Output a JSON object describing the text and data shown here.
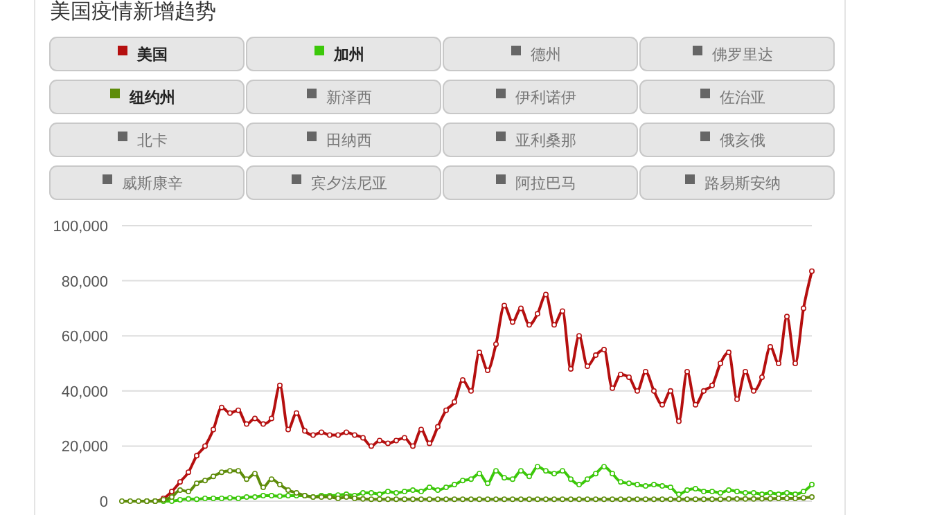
{
  "chart_data": {
    "type": "line",
    "title": "美国疫情新增趋势",
    "categories": [
      null,
      null,
      null,
      null,
      null,
      null,
      null,
      null,
      null,
      null,
      null,
      null,
      null,
      null,
      null,
      null,
      null,
      null,
      null,
      null,
      null,
      null,
      null,
      null,
      null,
      null,
      null,
      null,
      null,
      null,
      null,
      null,
      null,
      null,
      null,
      null,
      null,
      null,
      null,
      null,
      null,
      null,
      null,
      null,
      null,
      null,
      null,
      null,
      null,
      null,
      null,
      null,
      null,
      null,
      null,
      null,
      null,
      null,
      null,
      null,
      null,
      null,
      null,
      null,
      null,
      null,
      null,
      null,
      null,
      null,
      null,
      null,
      null,
      null,
      null,
      null,
      null,
      null,
      null,
      null,
      null,
      null,
      null,
      null
    ],
    "series": [
      {
        "name": "美国",
        "color": "#b50f0f",
        "values": [
          null,
          null,
          null,
          0,
          0,
          1000,
          3500,
          7000,
          10500,
          16500,
          20000,
          26000,
          34000,
          32000,
          33000,
          28000,
          30000,
          28000,
          30000,
          42000,
          26000,
          32000,
          25500,
          24000,
          25000,
          24000,
          24000,
          25000,
          24000,
          23000,
          20000,
          22000,
          21000,
          22000,
          23000,
          20000,
          26000,
          21000,
          27000,
          33000,
          36000,
          44000,
          40000,
          54000,
          47500,
          57000,
          71000,
          65000,
          70000,
          64000,
          68000,
          75000,
          64000,
          69000,
          48000,
          60000,
          49000,
          53000,
          55000,
          41000,
          46000,
          45000,
          40000,
          47000,
          40000,
          35000,
          40000,
          29000,
          47000,
          35000,
          40000,
          42000,
          50000,
          54000,
          37000,
          47000,
          40000,
          45000,
          56000,
          50000,
          67000,
          50000,
          70000,
          83500
        ]
      },
      {
        "name": "加州",
        "color": "#3cc80a",
        "values": [
          null,
          null,
          null,
          0,
          0,
          0,
          0,
          500,
          800,
          700,
          1000,
          1000,
          1000,
          1200,
          1000,
          1500,
          1500,
          2000,
          2000,
          1800,
          2000,
          2000,
          2000,
          1500,
          2000,
          2000,
          2200,
          2500,
          2000,
          3000,
          3000,
          2500,
          3500,
          3000,
          3500,
          4000,
          3500,
          5000,
          4000,
          5000,
          6000,
          7500,
          8000,
          10000,
          6500,
          11000,
          8500,
          8000,
          11000,
          9000,
          12500,
          11000,
          10000,
          11000,
          8000,
          6000,
          8000,
          10000,
          12500,
          10000,
          7000,
          6500,
          6000,
          5500,
          6000,
          5500,
          5000,
          2500,
          4000,
          4500,
          3500,
          3500,
          3000,
          4000,
          3500,
          3000,
          3000,
          2500,
          3000,
          2500,
          3000,
          2500,
          3500,
          6000
        ]
      },
      {
        "name": "德州",
        "color": "#666666",
        "values": [
          null,
          null,
          null,
          null,
          null,
          null,
          null,
          null,
          null,
          null,
          null,
          null,
          null,
          null,
          null,
          null,
          null,
          null,
          null,
          null,
          null,
          null,
          null,
          null,
          null,
          null,
          null,
          null,
          null,
          null,
          null,
          null,
          null,
          null,
          null,
          null,
          null,
          null,
          null,
          null,
          null,
          null,
          null,
          null,
          null,
          null,
          null,
          null,
          null,
          null,
          null,
          null,
          null,
          null,
          null,
          null,
          null,
          null,
          null,
          null,
          null,
          null,
          null,
          null,
          null,
          null,
          null,
          null,
          null,
          null,
          null,
          null,
          null,
          null,
          null,
          null,
          null,
          null,
          null,
          null,
          null,
          null,
          null,
          null
        ]
      },
      {
        "name": "佛罗里达",
        "color": "#666666",
        "values": [
          null,
          null,
          null,
          null,
          null,
          null,
          null,
          null,
          null,
          null,
          null,
          null,
          null,
          null,
          null,
          null,
          null,
          null,
          null,
          null,
          null,
          null,
          null,
          null,
          null,
          null,
          null,
          null,
          null,
          null,
          null,
          null,
          null,
          null,
          null,
          null,
          null,
          null,
          null,
          null,
          null,
          null,
          null,
          null,
          null,
          null,
          null,
          null,
          null,
          null,
          null,
          null,
          null,
          null,
          null,
          null,
          null,
          null,
          null,
          null,
          null,
          null,
          null,
          null,
          null,
          null,
          null,
          null,
          null,
          null,
          null,
          null,
          null,
          null,
          null,
          null,
          null,
          null,
          null,
          null,
          null,
          null,
          null,
          null
        ]
      },
      {
        "name": "纽约州",
        "color": "#5e8c0a",
        "values": [
          0,
          0,
          0,
          0,
          0,
          500,
          1500,
          4000,
          3500,
          6500,
          7500,
          9000,
          10500,
          11000,
          11000,
          8000,
          10000,
          5000,
          8000,
          6000,
          4000,
          3000,
          2000,
          1500,
          1500,
          1500,
          1000,
          1500,
          1000,
          800,
          700,
          700,
          700,
          700,
          700,
          700,
          700,
          700,
          700,
          700,
          700,
          700,
          700,
          700,
          700,
          700,
          700,
          700,
          700,
          700,
          700,
          700,
          700,
          700,
          700,
          700,
          700,
          700,
          700,
          700,
          700,
          700,
          700,
          700,
          700,
          700,
          700,
          700,
          700,
          700,
          700,
          700,
          700,
          800,
          800,
          800,
          800,
          900,
          900,
          1000,
          1000,
          1000,
          1200,
          1500
        ]
      },
      {
        "name": "新泽西",
        "color": "#666666",
        "values": [
          null,
          null,
          null,
          null,
          null,
          null,
          null,
          null,
          null,
          null,
          null,
          null,
          null,
          null,
          null,
          null,
          null,
          null,
          null,
          null,
          null,
          null,
          null,
          null,
          null,
          null,
          null,
          null,
          null,
          null,
          null,
          null,
          null,
          null,
          null,
          null,
          null,
          null,
          null,
          null,
          null,
          null,
          null,
          null,
          null,
          null,
          null,
          null,
          null,
          null,
          null,
          null,
          null,
          null,
          null,
          null,
          null,
          null,
          null,
          null,
          null,
          null,
          null,
          null,
          null,
          null,
          null,
          null,
          null,
          null,
          null,
          null,
          null,
          null,
          null,
          null,
          null,
          null,
          null,
          null,
          null,
          null,
          null,
          null
        ]
      },
      {
        "name": "伊利诺伊",
        "color": "#666666",
        "values": [
          null,
          null,
          null,
          null,
          null,
          null,
          null,
          null,
          null,
          null,
          null,
          null,
          null,
          null,
          null,
          null,
          null,
          null,
          null,
          null,
          null,
          null,
          null,
          null,
          null,
          null,
          null,
          null,
          null,
          null,
          null,
          null,
          null,
          null,
          null,
          null,
          null,
          null,
          null,
          null,
          null,
          null,
          null,
          null,
          null,
          null,
          null,
          null,
          null,
          null,
          null,
          null,
          null,
          null,
          null,
          null,
          null,
          null,
          null,
          null,
          null,
          null,
          null,
          null,
          null,
          null,
          null,
          null,
          null,
          null,
          null,
          null,
          null,
          null,
          null,
          null,
          null,
          null,
          null,
          null,
          null,
          null,
          null,
          null
        ]
      },
      {
        "name": "佐治亚",
        "color": "#666666",
        "values": [
          null,
          null,
          null,
          null,
          null,
          null,
          null,
          null,
          null,
          null,
          null,
          null,
          null,
          null,
          null,
          null,
          null,
          null,
          null,
          null,
          null,
          null,
          null,
          null,
          null,
          null,
          null,
          null,
          null,
          null,
          null,
          null,
          null,
          null,
          null,
          null,
          null,
          null,
          null,
          null,
          null,
          null,
          null,
          null,
          null,
          null,
          null,
          null,
          null,
          null,
          null,
          null,
          null,
          null,
          null,
          null,
          null,
          null,
          null,
          null,
          null,
          null,
          null,
          null,
          null,
          null,
          null,
          null,
          null,
          null,
          null,
          null,
          null,
          null,
          null,
          null,
          null,
          null,
          null,
          null,
          null,
          null,
          null,
          null
        ]
      },
      {
        "name": "北卡",
        "color": "#666666",
        "values": [
          null,
          null,
          null,
          null,
          null,
          null,
          null,
          null,
          null,
          null,
          null,
          null,
          null,
          null,
          null,
          null,
          null,
          null,
          null,
          null,
          null,
          null,
          null,
          null,
          null,
          null,
          null,
          null,
          null,
          null,
          null,
          null,
          null,
          null,
          null,
          null,
          null,
          null,
          null,
          null,
          null,
          null,
          null,
          null,
          null,
          null,
          null,
          null,
          null,
          null,
          null,
          null,
          null,
          null,
          null,
          null,
          null,
          null,
          null,
          null,
          null,
          null,
          null,
          null,
          null,
          null,
          null,
          null,
          null,
          null,
          null,
          null,
          null,
          null,
          null,
          null,
          null,
          null,
          null,
          null,
          null,
          null,
          null,
          null
        ]
      },
      {
        "name": "田纳西",
        "color": "#666666",
        "values": [
          null,
          null,
          null,
          null,
          null,
          null,
          null,
          null,
          null,
          null,
          null,
          null,
          null,
          null,
          null,
          null,
          null,
          null,
          null,
          null,
          null,
          null,
          null,
          null,
          null,
          null,
          null,
          null,
          null,
          null,
          null,
          null,
          null,
          null,
          null,
          null,
          null,
          null,
          null,
          null,
          null,
          null,
          null,
          null,
          null,
          null,
          null,
          null,
          null,
          null,
          null,
          null,
          null,
          null,
          null,
          null,
          null,
          null,
          null,
          null,
          null,
          null,
          null,
          null,
          null,
          null,
          null,
          null,
          null,
          null,
          null,
          null,
          null,
          null,
          null,
          null,
          null,
          null,
          null,
          null,
          null,
          null,
          null,
          null
        ]
      },
      {
        "name": "亚利桑那",
        "color": "#666666",
        "values": [
          null,
          null,
          null,
          null,
          null,
          null,
          null,
          null,
          null,
          null,
          null,
          null,
          null,
          null,
          null,
          null,
          null,
          null,
          null,
          null,
          null,
          null,
          null,
          null,
          null,
          null,
          null,
          null,
          null,
          null,
          null,
          null,
          null,
          null,
          null,
          null,
          null,
          null,
          null,
          null,
          null,
          null,
          null,
          null,
          null,
          null,
          null,
          null,
          null,
          null,
          null,
          null,
          null,
          null,
          null,
          null,
          null,
          null,
          null,
          null,
          null,
          null,
          null,
          null,
          null,
          null,
          null,
          null,
          null,
          null,
          null,
          null,
          null,
          null,
          null,
          null,
          null,
          null,
          null,
          null,
          null,
          null,
          null,
          null
        ]
      },
      {
        "name": "俄亥俄",
        "color": "#666666",
        "values": [
          null,
          null,
          null,
          null,
          null,
          null,
          null,
          null,
          null,
          null,
          null,
          null,
          null,
          null,
          null,
          null,
          null,
          null,
          null,
          null,
          null,
          null,
          null,
          null,
          null,
          null,
          null,
          null,
          null,
          null,
          null,
          null,
          null,
          null,
          null,
          null,
          null,
          null,
          null,
          null,
          null,
          null,
          null,
          null,
          null,
          null,
          null,
          null,
          null,
          null,
          null,
          null,
          null,
          null,
          null,
          null,
          null,
          null,
          null,
          null,
          null,
          null,
          null,
          null,
          null,
          null,
          null,
          null,
          null,
          null,
          null,
          null,
          null,
          null,
          null,
          null,
          null,
          null,
          null,
          null,
          null,
          null,
          null,
          null
        ]
      },
      {
        "name": "威斯康辛",
        "color": "#666666",
        "values": [
          null,
          null,
          null,
          null,
          null,
          null,
          null,
          null,
          null,
          null,
          null,
          null,
          null,
          null,
          null,
          null,
          null,
          null,
          null,
          null,
          null,
          null,
          null,
          null,
          null,
          null,
          null,
          null,
          null,
          null,
          null,
          null,
          null,
          null,
          null,
          null,
          null,
          null,
          null,
          null,
          null,
          null,
          null,
          null,
          null,
          null,
          null,
          null,
          null,
          null,
          null,
          null,
          null,
          null,
          null,
          null,
          null,
          null,
          null,
          null,
          null,
          null,
          null,
          null,
          null,
          null,
          null,
          null,
          null,
          null,
          null,
          null,
          null,
          null,
          null,
          null,
          null,
          null,
          null,
          null,
          null,
          null,
          null,
          null
        ]
      },
      {
        "name": "宾夕法尼亚",
        "color": "#666666",
        "values": [
          null,
          null,
          null,
          null,
          null,
          null,
          null,
          null,
          null,
          null,
          null,
          null,
          null,
          null,
          null,
          null,
          null,
          null,
          null,
          null,
          null,
          null,
          null,
          null,
          null,
          null,
          null,
          null,
          null,
          null,
          null,
          null,
          null,
          null,
          null,
          null,
          null,
          null,
          null,
          null,
          null,
          null,
          null,
          null,
          null,
          null,
          null,
          null,
          null,
          null,
          null,
          null,
          null,
          null,
          null,
          null,
          null,
          null,
          null,
          null,
          null,
          null,
          null,
          null,
          null,
          null,
          null,
          null,
          null,
          null,
          null,
          null,
          null,
          null,
          null,
          null,
          null,
          null,
          null,
          null,
          null,
          null,
          null,
          null
        ]
      },
      {
        "name": "阿拉巴马",
        "color": "#666666",
        "values": [
          null,
          null,
          null,
          null,
          null,
          null,
          null,
          null,
          null,
          null,
          null,
          null,
          null,
          null,
          null,
          null,
          null,
          null,
          null,
          null,
          null,
          null,
          null,
          null,
          null,
          null,
          null,
          null,
          null,
          null,
          null,
          null,
          null,
          null,
          null,
          null,
          null,
          null,
          null,
          null,
          null,
          null,
          null,
          null,
          null,
          null,
          null,
          null,
          null,
          null,
          null,
          null,
          null,
          null,
          null,
          null,
          null,
          null,
          null,
          null,
          null,
          null,
          null,
          null,
          null,
          null,
          null,
          null,
          null,
          null,
          null,
          null,
          null,
          null,
          null,
          null,
          null,
          null,
          null,
          null,
          null,
          null,
          null,
          null
        ]
      },
      {
        "name": "路易斯安纳",
        "color": "#666666",
        "values": [
          null,
          null,
          null,
          null,
          null,
          null,
          null,
          null,
          null,
          null,
          null,
          null,
          null,
          null,
          null,
          null,
          null,
          null,
          null,
          null,
          null,
          null,
          null,
          null,
          null,
          null,
          null,
          null,
          null,
          null,
          null,
          null,
          null,
          null,
          null,
          null,
          null,
          null,
          null,
          null,
          null,
          null,
          null,
          null,
          null,
          null,
          null,
          null,
          null,
          null,
          null,
          null,
          null,
          null,
          null,
          null,
          null,
          null,
          null,
          null,
          null,
          null,
          null,
          null,
          null,
          null,
          null,
          null,
          null,
          null,
          null,
          null,
          null,
          null,
          null,
          null,
          null,
          null,
          null,
          null,
          null,
          null,
          null,
          null
        ]
      }
    ],
    "ylim": [
      0,
      100000
    ],
    "yticks": [
      {
        "value": 0,
        "label": "0"
      },
      {
        "value": 20000,
        "label": "20,000"
      },
      {
        "value": 40000,
        "label": "40,000"
      },
      {
        "value": 60000,
        "label": "60,000"
      },
      {
        "value": 80000,
        "label": "80,000"
      },
      {
        "value": 100000,
        "label": "100,000"
      }
    ],
    "grid": "y",
    "legend": "top",
    "tick_labels": "y",
    "marker": "circle",
    "line_style": "solid"
  }
}
